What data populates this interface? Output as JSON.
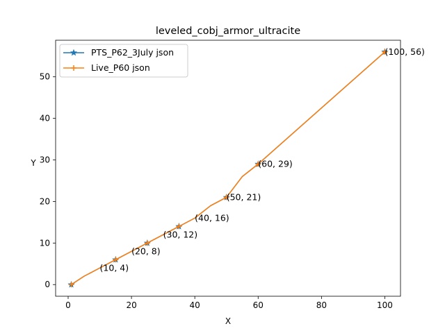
{
  "chart_data": {
    "type": "line",
    "title": "leveled_cobj_armor_ultracite",
    "xlabel": "X",
    "ylabel": "Y",
    "xlim": [
      -3.95,
      104.95
    ],
    "ylim": [
      -2.8,
      58.8
    ],
    "xticks": [
      0,
      20,
      40,
      60,
      80,
      100
    ],
    "yticks": [
      0,
      10,
      20,
      30,
      40,
      50
    ],
    "grid": false,
    "legend_position": "upper-left",
    "series": [
      {
        "name": "PTS_P62_3July json",
        "color": "#1f77b4",
        "marker": "star",
        "x": [
          1,
          5,
          10,
          15,
          20,
          25,
          30,
          35,
          40,
          45,
          50,
          55,
          60,
          100
        ],
        "y": [
          0,
          2,
          4,
          6,
          8,
          10,
          12,
          14,
          16,
          19,
          21,
          26,
          29,
          56
        ],
        "marked_x": [
          1,
          15,
          25,
          35,
          50,
          60,
          100
        ]
      },
      {
        "name": "Live_P60 json",
        "color": "#ff7f0e",
        "marker": "plus",
        "x": [
          1,
          5,
          10,
          15,
          20,
          25,
          30,
          35,
          40,
          45,
          50,
          55,
          60,
          100
        ],
        "y": [
          0,
          2,
          4,
          6,
          8,
          10,
          12,
          14,
          16,
          19,
          21,
          26,
          29,
          56
        ],
        "marked_x": [
          1,
          15,
          25,
          35,
          50,
          60,
          100
        ]
      }
    ],
    "annotations": [
      {
        "text": "(10, 4)",
        "x": 10,
        "y": 4
      },
      {
        "text": "(20, 8)",
        "x": 20,
        "y": 8
      },
      {
        "text": "(30, 12)",
        "x": 30,
        "y": 12
      },
      {
        "text": "(40, 16)",
        "x": 40,
        "y": 16
      },
      {
        "text": "(50, 21)",
        "x": 50,
        "y": 21
      },
      {
        "text": "(60, 29)",
        "x": 60,
        "y": 29
      },
      {
        "text": "(100, 56)",
        "x": 100,
        "y": 56
      }
    ]
  }
}
